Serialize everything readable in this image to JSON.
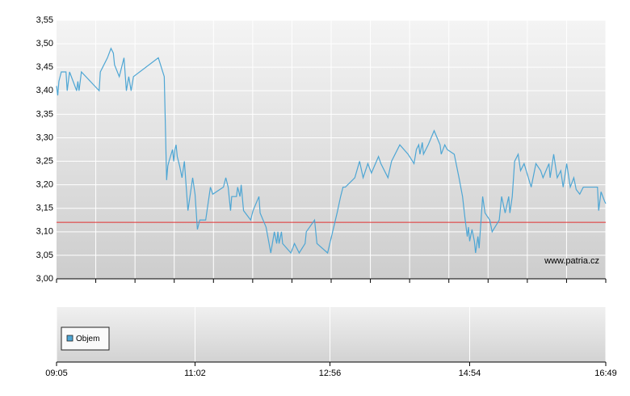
{
  "chart_data": {
    "type": "line",
    "watermark": "www.patria.cz",
    "x": [
      "09:05",
      "09:06",
      "09:07",
      "09:09",
      "09:13",
      "09:14",
      "09:16",
      "09:22",
      "09:23",
      "09:24",
      "09:26",
      "09:41",
      "09:42",
      "09:48",
      "09:51",
      "09:53",
      "09:54",
      "09:58",
      "10:02",
      "10:04",
      "10:06",
      "10:08",
      "10:10",
      "10:31",
      "10:36",
      "10:38",
      "10:39",
      "10:40",
      "10:43",
      "10:44",
      "10:45",
      "10:46",
      "10:47",
      "10:49",
      "10:51",
      "10:53",
      "10:56",
      "11:00",
      "11:02",
      "11:04",
      "11:06",
      "11:11",
      "11:15",
      "11:17",
      "11:26",
      "11:28",
      "11:30",
      "11:32",
      "11:33",
      "11:37",
      "11:38",
      "11:40",
      "11:41",
      "11:43",
      "11:49",
      "11:51",
      "11:56",
      "11:57",
      "12:02",
      "12:06",
      "12:09",
      "12:11",
      "12:12",
      "12:13",
      "12:15",
      "12:16",
      "12:23",
      "12:26",
      "12:30",
      "12:35",
      "12:36",
      "12:43",
      "12:45",
      "12:54",
      "13:02",
      "13:05",
      "13:07",
      "13:09",
      "13:17",
      "13:21",
      "13:24",
      "13:28",
      "13:31",
      "13:37",
      "13:39",
      "13:45",
      "13:48",
      "13:55",
      "14:02",
      "14:07",
      "14:09",
      "14:11",
      "14:12",
      "14:14",
      "14:15",
      "14:19",
      "14:24",
      "14:29",
      "14:30",
      "14:33",
      "14:35",
      "14:41",
      "14:45",
      "14:48",
      "14:50",
      "14:52",
      "14:53",
      "14:54",
      "14:56",
      "14:58",
      "14:59",
      "15:01",
      "15:02",
      "15:05",
      "15:07",
      "15:11",
      "15:13",
      "15:19",
      "15:21",
      "15:24",
      "15:27",
      "15:28",
      "15:30",
      "15:32",
      "15:35",
      "15:37",
      "15:40",
      "15:46",
      "15:50",
      "15:54",
      "15:56",
      "16:01",
      "16:02",
      "16:05",
      "16:08",
      "16:11",
      "16:13",
      "16:16",
      "16:19",
      "16:22",
      "16:24",
      "16:27",
      "16:30",
      "16:42",
      "16:43",
      "16:45",
      "16:48",
      "16:49"
    ],
    "series": [
      {
        "name": "Objem",
        "color": "#4ea6d4",
        "values": [
          3.41,
          3.39,
          3.42,
          3.44,
          3.44,
          3.4,
          3.44,
          3.4,
          3.42,
          3.4,
          3.44,
          3.4,
          3.44,
          3.47,
          3.49,
          3.48,
          3.455,
          3.43,
          3.47,
          3.4,
          3.43,
          3.4,
          3.43,
          3.47,
          3.43,
          3.21,
          3.24,
          3.25,
          3.275,
          3.25,
          3.275,
          3.285,
          3.26,
          3.24,
          3.215,
          3.25,
          3.145,
          3.215,
          3.18,
          3.105,
          3.125,
          3.125,
          3.195,
          3.18,
          3.195,
          3.215,
          3.195,
          3.145,
          3.175,
          3.175,
          3.195,
          3.175,
          3.2,
          3.145,
          3.125,
          3.145,
          3.175,
          3.14,
          3.11,
          3.055,
          3.1,
          3.075,
          3.1,
          3.075,
          3.1,
          3.075,
          3.055,
          3.075,
          3.055,
          3.075,
          3.1,
          3.125,
          3.075,
          3.055,
          3.14,
          3.175,
          3.195,
          3.195,
          3.215,
          3.25,
          3.215,
          3.245,
          3.225,
          3.26,
          3.245,
          3.215,
          3.25,
          3.285,
          3.265,
          3.245,
          3.275,
          3.285,
          3.265,
          3.29,
          3.265,
          3.285,
          3.315,
          3.285,
          3.265,
          3.285,
          3.275,
          3.265,
          3.215,
          3.175,
          3.13,
          3.09,
          3.11,
          3.08,
          3.105,
          3.08,
          3.055,
          3.09,
          3.065,
          3.175,
          3.14,
          3.125,
          3.1,
          3.125,
          3.175,
          3.14,
          3.175,
          3.14,
          3.175,
          3.25,
          3.265,
          3.23,
          3.245,
          3.195,
          3.245,
          3.23,
          3.215,
          3.245,
          3.215,
          3.265,
          3.215,
          3.23,
          3.195,
          3.245,
          3.195,
          3.215,
          3.19,
          3.18,
          3.195,
          3.195,
          3.145,
          3.185,
          3.165,
          3.16
        ]
      }
    ],
    "hline": {
      "value": 3.12,
      "color": "#e03030"
    },
    "xlim": [
      "09:05",
      "16:49"
    ],
    "xticks": [
      "09:05",
      "11:02",
      "12:56",
      "14:54",
      "16:49"
    ],
    "ylim": [
      3.0,
      3.55
    ],
    "yticks": [
      {
        "value": 3.0,
        "label": "3,00"
      },
      {
        "value": 3.05,
        "label": "3,05"
      },
      {
        "value": 3.1,
        "label": "3,10"
      },
      {
        "value": 3.15,
        "label": "3,15"
      },
      {
        "value": 3.2,
        "label": "3,20"
      },
      {
        "value": 3.25,
        "label": "3,25"
      },
      {
        "value": 3.3,
        "label": "3,30"
      },
      {
        "value": 3.35,
        "label": "3,35"
      },
      {
        "value": 3.4,
        "label": "3,40"
      },
      {
        "value": 3.45,
        "label": "3,45"
      },
      {
        "value": 3.5,
        "label": "3,50"
      },
      {
        "value": 3.55,
        "label": "3,55"
      }
    ],
    "grid": true
  }
}
